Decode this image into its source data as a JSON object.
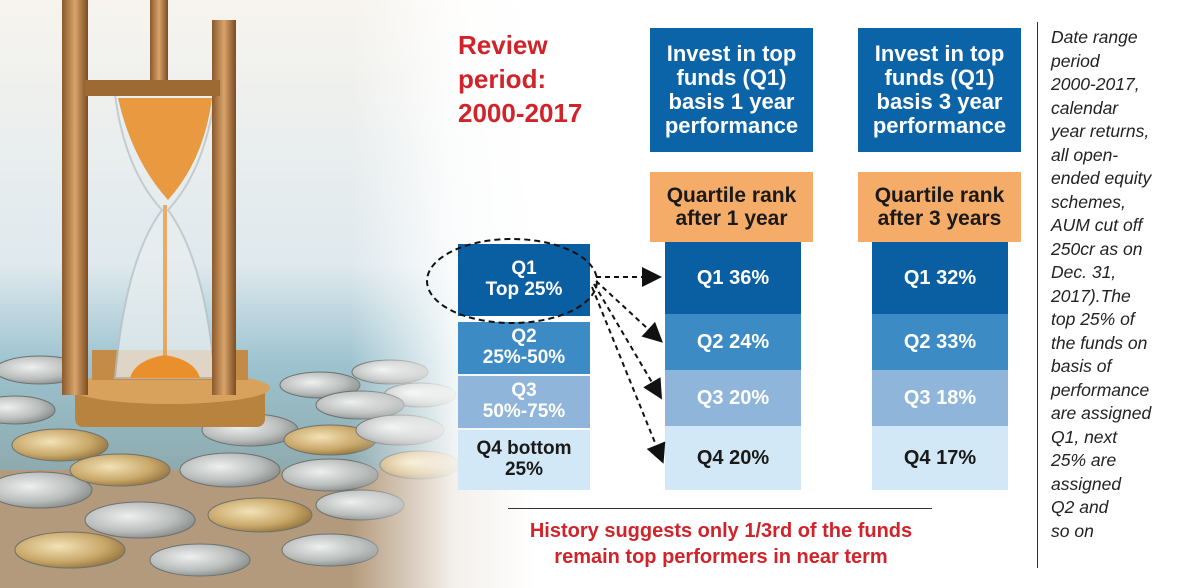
{
  "review": {
    "line1": "Review",
    "line2": "period:",
    "line3": "2000-2017"
  },
  "headers": [
    {
      "lines": [
        "Invest in top",
        "funds (Q1)",
        "basis 1 year",
        "performance"
      ]
    },
    {
      "lines": [
        "Invest in top",
        "funds (Q1)",
        "basis 3 year",
        "performance"
      ]
    }
  ],
  "rank_labels": [
    {
      "lines": [
        "Quartile rank",
        "after 1 year"
      ]
    },
    {
      "lines": [
        "Quartile rank",
        "after 3 years"
      ]
    }
  ],
  "left_quartiles": [
    {
      "lines": [
        "Q1",
        "Top 25%"
      ]
    },
    {
      "lines": [
        "Q2",
        "25%-50%"
      ]
    },
    {
      "lines": [
        "Q3",
        "50%-75%"
      ]
    },
    {
      "lines": [
        "Q4 bottom",
        "25%"
      ]
    }
  ],
  "chart_data": {
    "type": "table",
    "columns": [
      "Quartile rank after 1 year",
      "Quartile rank after 3 years"
    ],
    "rows": [
      "Q1",
      "Q2",
      "Q3",
      "Q4"
    ],
    "values_pct": [
      [
        36,
        32
      ],
      [
        24,
        33
      ],
      [
        20,
        18
      ],
      [
        20,
        17
      ]
    ],
    "cells_1y": [
      "Q1 36%",
      "Q2 24%",
      "Q3 20%",
      "Q4 20%"
    ],
    "cells_3y": [
      "Q1 32%",
      "Q2 33%",
      "Q3 18%",
      "Q4 17%"
    ]
  },
  "note_lines": [
    "Date range",
    "period",
    "2000-2017,",
    "calendar",
    "year returns,",
    "all open-",
    "ended equity",
    "schemes,",
    "AUM cut off",
    "250cr as on",
    "Dec. 31,",
    "2017).The",
    "top 25% of",
    "the funds on",
    "basis of",
    "performance",
    "are assigned",
    "Q1, next",
    "25% are",
    "assigned",
    "Q2 and",
    "so on"
  ],
  "bottom": {
    "line1": "History suggests only 1/3rd of the funds",
    "line2": "remain top performers in near term"
  },
  "colors": {
    "header_blue": "#0b63a8",
    "rank_orange": "#f5ac68",
    "q1": "#0a5fa3",
    "q2": "#3d8bc4",
    "q3": "#8fb5da",
    "q4": "#d2e8f6",
    "accent_red": "#d0232a"
  },
  "icons": {
    "photo": "hourglass-and-coins-image"
  }
}
